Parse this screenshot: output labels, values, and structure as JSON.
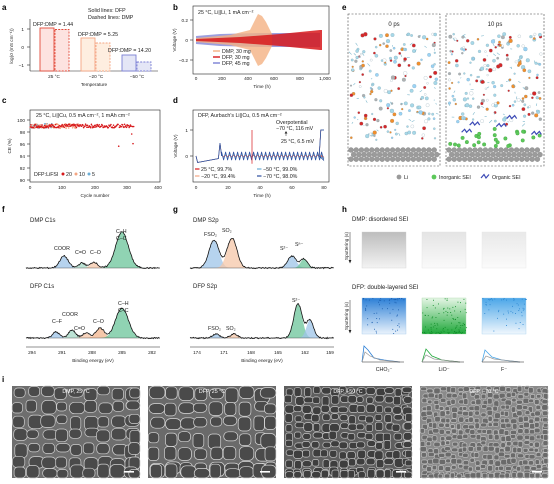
{
  "figure": {
    "panel_labels": [
      "a",
      "b",
      "c",
      "d",
      "e",
      "f",
      "g",
      "h",
      "i"
    ]
  },
  "panel_a": {
    "legend": [
      "Solid lines: DFP",
      "Dashed lines: DMP"
    ],
    "ylabel": "log(σ (mS cm⁻¹))",
    "xlabel": "Temperature",
    "yticks": [
      "1",
      "0",
      "−1"
    ],
    "categories": [
      "25 °C",
      "−20 °C",
      "−50 °C"
    ],
    "ratio_labels": [
      "DFP:DMP = 1.44",
      "DFP:DMP = 5.25",
      "DFP:DMP = 14.20"
    ]
  },
  "panel_b": {
    "title": "25 °C, Li||Li, 1 mA cm⁻²",
    "ylabel": "Voltage (V)",
    "xlabel": "Time (h)",
    "yticks": [
      "0.2",
      "0",
      "−0.2"
    ],
    "xticks": [
      "0",
      "200",
      "400",
      "600",
      "800",
      "1,000"
    ],
    "legend": [
      "DMP, 30 mg",
      "DFP, 30 mg",
      "DFP, 45 mg"
    ],
    "colors": {
      "dmp30": "#f4b183",
      "dfp30": "#d7191c",
      "dfp45": "#7b7fd4"
    }
  },
  "panel_c": {
    "title": "25 °C, Li||Cu, 0.5 mA cm⁻², 1 mAh cm⁻²",
    "ylabel": "CE (%)",
    "xlabel": "Cycle number",
    "yticks": [
      "100",
      "98",
      "96",
      "94",
      "92",
      "90"
    ],
    "xticks": [
      "0",
      "100",
      "200",
      "300",
      "400"
    ],
    "legend_label": "DFP:LiFSI",
    "legend_values": [
      "20",
      "10",
      "5"
    ],
    "colors": [
      "#d7191c",
      "#f4a582",
      "#6baed6"
    ]
  },
  "panel_d": {
    "title": "DFP, Aurbach’s Li||Cu, 0.5 mA cm⁻²",
    "ylabel": "Voltage (V)",
    "xlabel": "Time (h)",
    "yticks": [
      "1",
      "0"
    ],
    "xticks": [
      "0",
      "20",
      "40",
      "60",
      "80"
    ],
    "annotations": [
      "Overpotential",
      "−70 °C, 116 mV",
      "25 °C, 6.5 mV"
    ],
    "legend": [
      "25 °C, 99.7%",
      "−20 °C, 99.4%",
      "−50 °C, 99.0%",
      "−70 °C, 98.0%"
    ],
    "colors": [
      "#d7191c",
      "#f4a582",
      "#6baed6",
      "#2c4d9e"
    ]
  },
  "panel_e": {
    "frames": [
      "0 ps",
      "10 ps"
    ],
    "legend": [
      "Li",
      "Inorganic SEI",
      "Organic SEI"
    ]
  },
  "panel_f": {
    "top_title": "DMP C1s",
    "top_peaks": [
      "COOR",
      "C=O",
      "C–O",
      "C–H",
      "C–C"
    ],
    "bottom_title": "DFP C1s",
    "bottom_peaks": [
      "COOR",
      "C–F",
      "C=O",
      "C–O",
      "C–H",
      "C–C"
    ],
    "xlabel": "Binding energy (eV)",
    "xticks": [
      "294",
      "291",
      "288",
      "285",
      "282"
    ]
  },
  "panel_g": {
    "top_title": "DMP S2p",
    "top_peaks": [
      "FSO₂",
      "SO₂",
      "S²⁻",
      "Sⁿ⁻"
    ],
    "bottom_title": "DFP S2p",
    "bottom_peaks": [
      "FSO₂",
      "SO₂",
      "S²⁻"
    ],
    "xlabel": "Binding energy (eV)",
    "xticks": [
      "174",
      "171",
      "168",
      "165",
      "162",
      "159"
    ]
  },
  "panel_h": {
    "top_title": "DMP: disordered SEI",
    "bottom_title": "DFP: double-layered SEI",
    "ylabel": "Sputtering (s)",
    "fragments": [
      "CHO₂⁻",
      "LiO⁻",
      "F⁻"
    ]
  },
  "panel_i": {
    "captions": [
      "DMP, 25 °C",
      "DFP, 25 °C",
      "DFP, −50 °C",
      "DFP, −70 °C"
    ]
  }
}
